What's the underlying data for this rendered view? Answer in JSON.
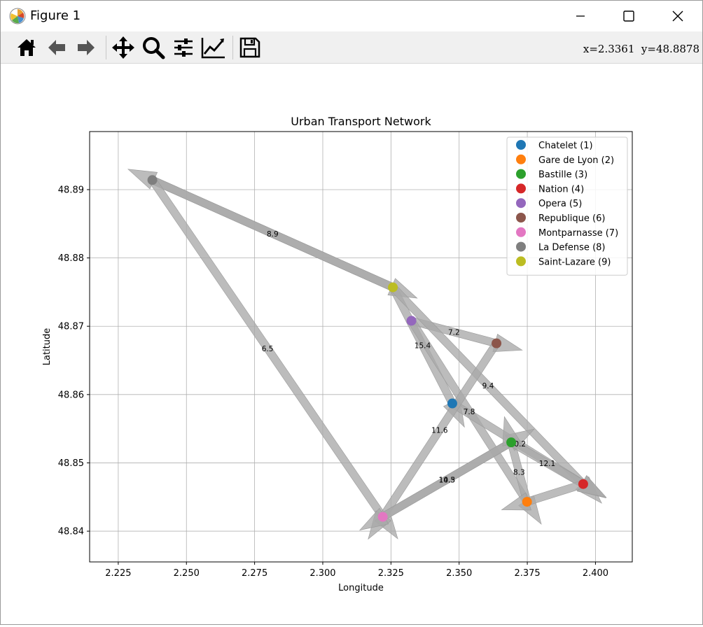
{
  "window": {
    "title": "Figure 1",
    "minimize_icon": "minimize-icon",
    "maximize_icon": "maximize-icon",
    "close_icon": "close-icon"
  },
  "toolbar": {
    "tools": [
      {
        "name": "home-icon"
      },
      {
        "name": "back-arrow-icon"
      },
      {
        "name": "forward-arrow-icon"
      },
      {
        "name": "pan-icon"
      },
      {
        "name": "zoom-icon"
      },
      {
        "name": "configure-subplots-icon"
      },
      {
        "name": "edit-axis-icon"
      },
      {
        "name": "save-icon"
      }
    ],
    "coordinates": "x=2.3361  y=48.8878"
  },
  "chart_data": {
    "type": "scatter",
    "title": "Urban Transport Network",
    "xlabel": "Longitude",
    "ylabel": "Latitude",
    "xlim": [
      2.2145,
      2.4135
    ],
    "ylim": [
      48.8355,
      48.8985
    ],
    "xticks": [
      2.225,
      2.25,
      2.275,
      2.3,
      2.325,
      2.35,
      2.375,
      2.4
    ],
    "xtick_labels": [
      "2.225",
      "2.250",
      "2.275",
      "2.300",
      "2.325",
      "2.350",
      "2.375",
      "2.400"
    ],
    "yticks": [
      48.84,
      48.85,
      48.86,
      48.87,
      48.88,
      48.89
    ],
    "ytick_labels": [
      "48.84",
      "48.85",
      "48.86",
      "48.87",
      "48.88",
      "48.89"
    ],
    "grid": true,
    "legend_position": "upper-right",
    "edge_color": "#a9a9a9",
    "stations": [
      {
        "id": 1,
        "label": "Chatelet (1)",
        "x": 2.3475,
        "y": 48.8587,
        "color": "#1f77b4"
      },
      {
        "id": 2,
        "label": "Gare de Lyon (2)",
        "x": 2.3749,
        "y": 48.8443,
        "color": "#ff7f0e"
      },
      {
        "id": 3,
        "label": "Bastille (3)",
        "x": 2.3691,
        "y": 48.853,
        "color": "#2ca02c"
      },
      {
        "id": 4,
        "label": "Nation (4)",
        "x": 2.3955,
        "y": 48.8469,
        "color": "#d62728"
      },
      {
        "id": 5,
        "label": "Opera (5)",
        "x": 2.3325,
        "y": 48.8708,
        "color": "#9467bd"
      },
      {
        "id": 6,
        "label": "Republique (6)",
        "x": 2.3637,
        "y": 48.8675,
        "color": "#8c564b"
      },
      {
        "id": 7,
        "label": "Montparnasse (7)",
        "x": 2.322,
        "y": 48.8421,
        "color": "#e377c2"
      },
      {
        "id": 8,
        "label": "La Defense (8)",
        "x": 2.2375,
        "y": 48.8914,
        "color": "#7f7f7f"
      },
      {
        "id": 9,
        "label": "Saint-Lazare (9)",
        "x": 2.3257,
        "y": 48.8757,
        "color": "#bcbd22"
      }
    ],
    "edges": [
      {
        "from": 8,
        "to": 9,
        "weight": "8.9"
      },
      {
        "from": 9,
        "to": 8,
        "weight": ""
      },
      {
        "from": 8,
        "to": 7,
        "weight": "6.5"
      },
      {
        "from": 5,
        "to": 6,
        "weight": "7.2"
      },
      {
        "from": 9,
        "to": 1,
        "weight": "15.4"
      },
      {
        "from": 9,
        "to": 4,
        "weight": "9.4"
      },
      {
        "from": 5,
        "to": 2,
        "weight": "7.8"
      },
      {
        "from": 1,
        "to": 4,
        "weight": "10.2"
      },
      {
        "from": 6,
        "to": 7,
        "weight": "11.6"
      },
      {
        "from": 7,
        "to": 3,
        "weight": "10.5"
      },
      {
        "from": 3,
        "to": 7,
        "weight": "14.3"
      },
      {
        "from": 2,
        "to": 3,
        "weight": "8.3"
      },
      {
        "from": 3,
        "to": 4,
        "weight": "12.1"
      },
      {
        "from": 4,
        "to": 2,
        "weight": ""
      }
    ]
  }
}
